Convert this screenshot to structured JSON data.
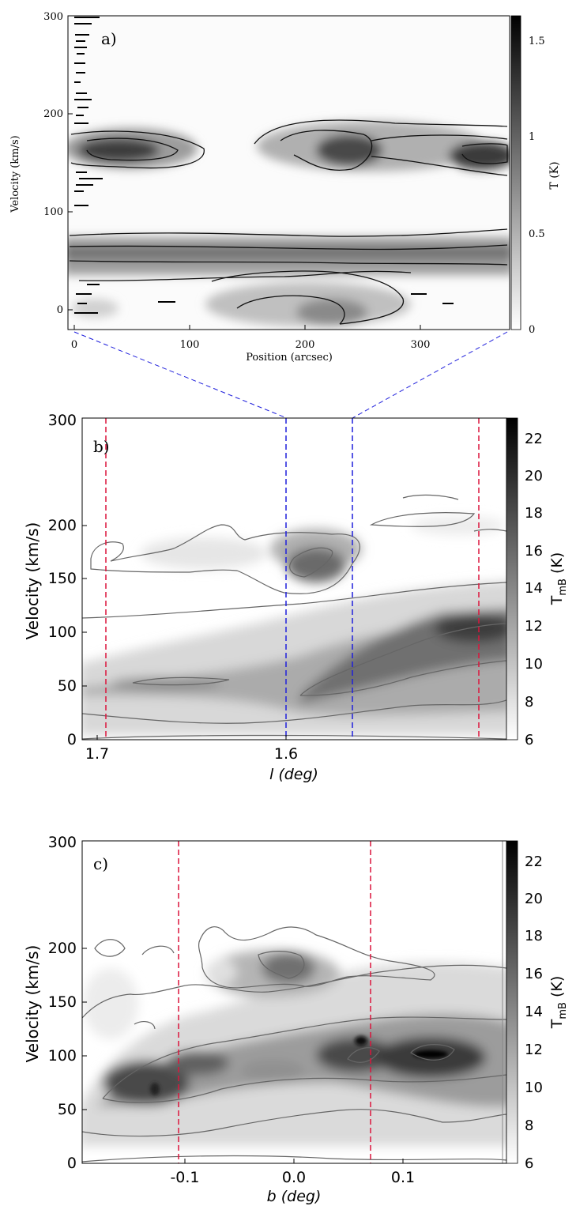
{
  "chart_data": [
    {
      "type": "heatmap",
      "panel_label": "a)",
      "xlabel": "Position (arcsec)",
      "ylabel": "Velocity (km/s)",
      "xlim": [
        -5,
        375
      ],
      "ylim": [
        -20,
        300
      ],
      "x_ticks": [
        "0",
        "100",
        "200",
        "300"
      ],
      "y_ticks": [
        "0",
        "100",
        "200",
        "300"
      ],
      "colorbar": {
        "label": "T (K)",
        "range": [
          0,
          1.6
        ],
        "ticks": [
          "0",
          "0.5",
          "1",
          "1.5"
        ]
      },
      "features": [
        {
          "x_range": [
            0,
            110
          ],
          "velocity_range": [
            135,
            175
          ],
          "peak_T": 1.2
        },
        {
          "x_range": [
            150,
            375
          ],
          "velocity_range": [
            130,
            195
          ],
          "peak_T": 1.5
        },
        {
          "x_range": [
            0,
            375
          ],
          "velocity_range": [
            40,
            75
          ],
          "peak_T": 0.8
        },
        {
          "x_range": [
            140,
            300
          ],
          "velocity_range": [
            -20,
            25
          ],
          "peak_T": 0.5
        }
      ]
    },
    {
      "type": "heatmap",
      "panel_label": "b)",
      "xlabel": "l (deg)",
      "ylabel": "Velocity (km/s)",
      "xlim": [
        1.707,
        1.513
      ],
      "ylim": [
        0,
        300
      ],
      "x_ticks": [
        "1.7",
        "1.6"
      ],
      "y_ticks": [
        "0",
        "50",
        "100",
        "150",
        "200",
        "300"
      ],
      "colorbar": {
        "label": "T",
        "label_sub": "mB",
        "label_unit": " (K)",
        "range": [
          6,
          23
        ],
        "ticks": [
          "6",
          "8",
          "10",
          "12",
          "14",
          "16",
          "18",
          "20",
          "22"
        ]
      },
      "marker_lines": [
        {
          "x": 1.695,
          "color": "#dc143c"
        },
        {
          "x": 1.614,
          "color": "#1f1fdc"
        },
        {
          "x": 1.584,
          "color": "#1f1fdc"
        },
        {
          "x": 1.526,
          "color": "#dc143c"
        }
      ],
      "features": [
        {
          "l_range": [
            1.69,
            1.57
          ],
          "velocity_range": [
            140,
            200
          ],
          "peak_T": 18
        },
        {
          "l_range": [
            1.707,
            1.513
          ],
          "velocity_range": [
            20,
            125
          ],
          "peak_T": 22
        }
      ]
    },
    {
      "type": "heatmap",
      "panel_label": "c)",
      "xlabel": "b (deg)",
      "ylabel": "Velocity (km/s)",
      "xlim": [
        -0.195,
        0.195
      ],
      "ylim": [
        0,
        300
      ],
      "x_ticks": [
        "-0.1",
        "0.0",
        "0.1"
      ],
      "y_ticks": [
        "0",
        "50",
        "100",
        "150",
        "200",
        "300"
      ],
      "colorbar": {
        "label": "T",
        "label_sub": "mB",
        "label_unit": " (K)",
        "range": [
          6,
          23
        ],
        "ticks": [
          "6",
          "8",
          "10",
          "12",
          "14",
          "16",
          "18",
          "20",
          "22"
        ]
      },
      "marker_lines": [
        {
          "x": -0.106,
          "color": "#dc143c"
        },
        {
          "x": 0.076,
          "color": "#dc143c"
        }
      ],
      "features": [
        {
          "b_range": [
            -0.06,
            0.08
          ],
          "velocity_range": [
            145,
            215
          ],
          "peak_T": 17
        },
        {
          "b_range": [
            -0.195,
            0.195
          ],
          "velocity_range": [
            20,
            135
          ],
          "peak_T": 23
        }
      ]
    }
  ]
}
